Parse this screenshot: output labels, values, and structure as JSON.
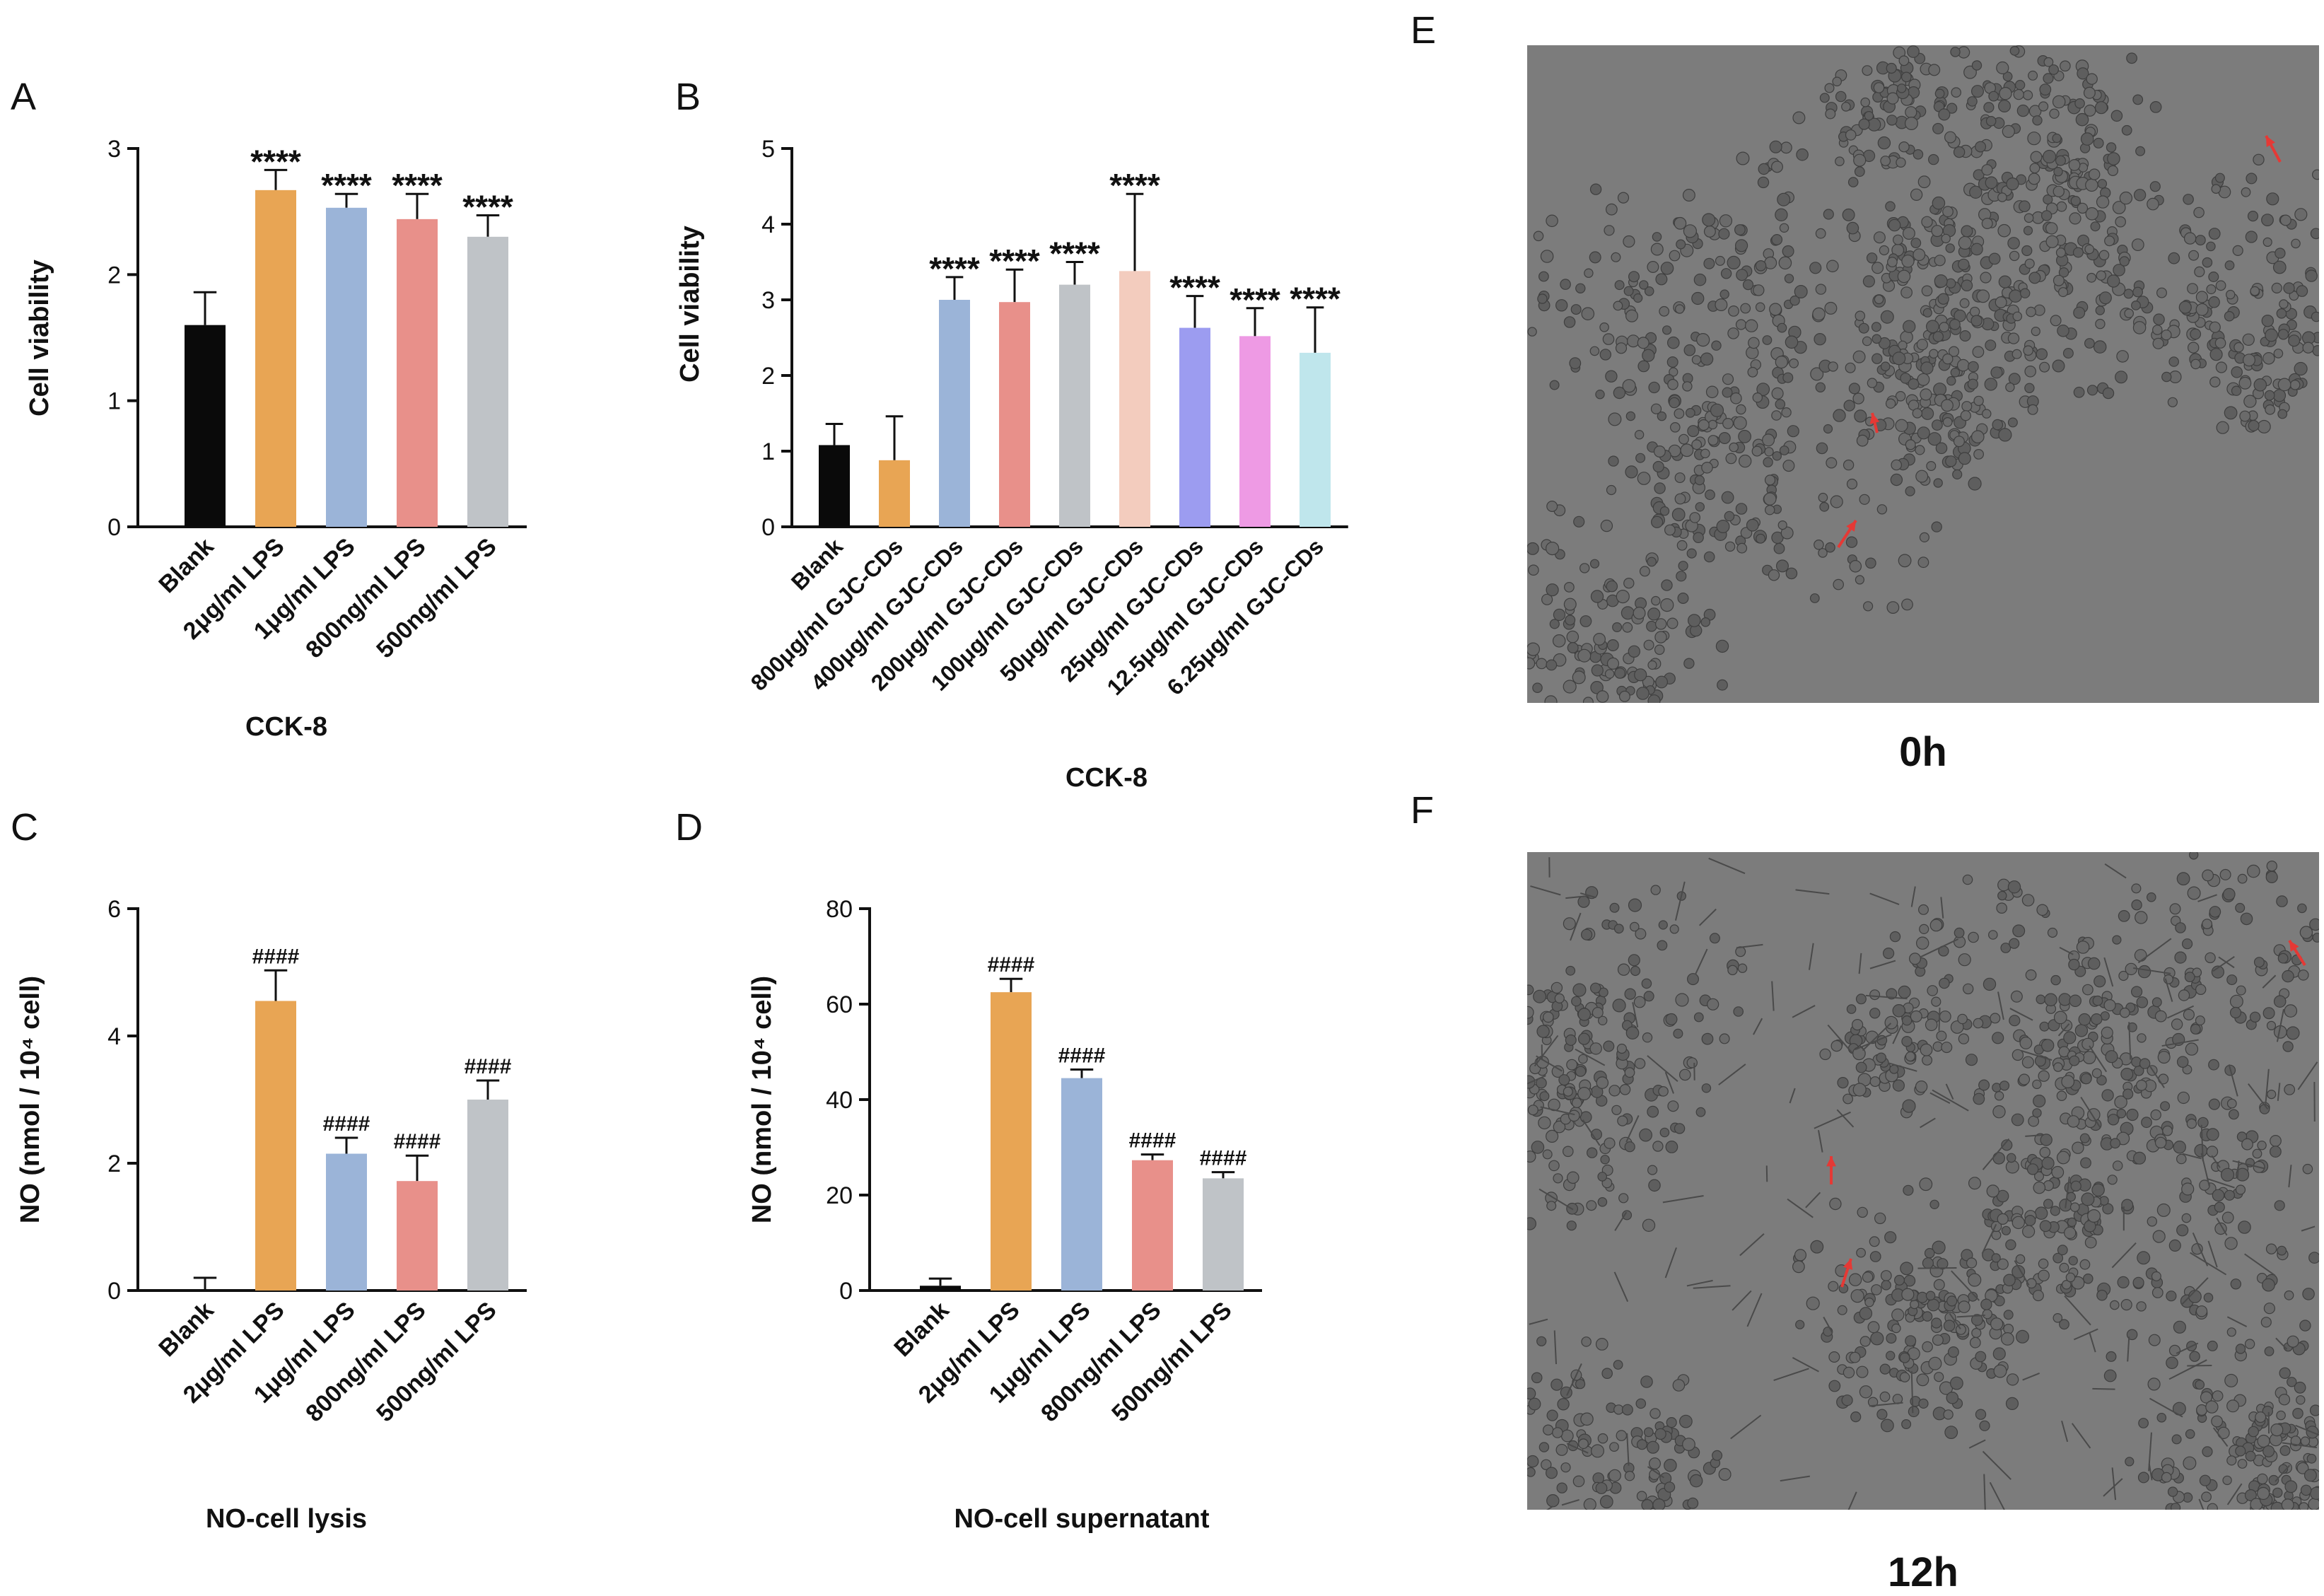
{
  "colors": {
    "black": "#0a0a0a",
    "orange": "#E8A554",
    "blue": "#9BB4D8",
    "salmon": "#E8908A",
    "gray": "#BFC3C7",
    "peach": "#F3CCBE",
    "purple": "#9C9CF0",
    "pink": "#EE9AE4",
    "cyan": "#BFE6EC",
    "arrow": "#E53935",
    "image_bg": "#7c7c7c"
  },
  "chart_data": [
    {
      "panel": "A",
      "type": "bar",
      "title": "CCK-8",
      "ylabel": "Cell viability",
      "ylim": [
        0,
        3
      ],
      "yticks": [
        "0",
        "1",
        "2",
        "3"
      ],
      "categories": [
        "Blank",
        "2μg/ml LPS",
        "1μg/ml LPS",
        "800ng/ml LPS",
        "500ng/ml LPS"
      ],
      "values": [
        1.6,
        2.67,
        2.53,
        2.44,
        2.3
      ],
      "errors": [
        0.26,
        0.16,
        0.11,
        0.2,
        0.17
      ],
      "annotations": [
        "",
        "****",
        "****",
        "****",
        "****"
      ],
      "colors": [
        "black",
        "orange",
        "blue",
        "salmon",
        "gray"
      ]
    },
    {
      "panel": "B",
      "type": "bar",
      "title": "CCK-8",
      "ylabel": "Cell viability",
      "ylim": [
        0,
        5
      ],
      "yticks": [
        "0",
        "1",
        "2",
        "3",
        "4",
        "5"
      ],
      "categories": [
        "Blank",
        "800μg/ml GJC-CDs",
        "400μg/ml GJC-CDs",
        "200μg/ml GJC-CDs",
        "100μg/ml GJC-CDs",
        "50μg/ml GJC-CDs",
        "25μg/ml GJC-CDs",
        "12.5μg/ml GJC-CDs",
        "6.25μg/ml GJC-CDs"
      ],
      "values": [
        1.08,
        0.88,
        3.0,
        2.97,
        3.2,
        3.38,
        2.63,
        2.52,
        2.3
      ],
      "errors": [
        0.28,
        0.58,
        0.3,
        0.43,
        0.3,
        1.02,
        0.42,
        0.37,
        0.6
      ],
      "annotations": [
        "",
        "",
        "****",
        "****",
        "****",
        "****",
        "****",
        "****",
        "****"
      ],
      "colors": [
        "black",
        "orange",
        "blue",
        "salmon",
        "gray",
        "peach",
        "purple",
        "pink",
        "cyan"
      ]
    },
    {
      "panel": "C",
      "type": "bar",
      "title": "NO-cell lysis",
      "ylabel": "NO (nmol / 10⁴ cell)",
      "ylim": [
        0,
        6
      ],
      "yticks": [
        "0",
        "2",
        "4",
        "6"
      ],
      "categories": [
        "Blank",
        "2μg/ml LPS",
        "1μg/ml LPS",
        "800ng/ml LPS",
        "500ng/ml LPS"
      ],
      "values": [
        0,
        4.55,
        2.15,
        1.72,
        3.0
      ],
      "errors": [
        0.2,
        0.48,
        0.25,
        0.4,
        0.3
      ],
      "annotations": [
        "",
        "####",
        "####",
        "####",
        "####"
      ],
      "colors": [
        "black",
        "orange",
        "blue",
        "salmon",
        "gray"
      ]
    },
    {
      "panel": "D",
      "type": "bar",
      "title": "NO-cell supernatant",
      "ylabel": "NO (nmol / 10⁴ cell)",
      "ylim": [
        0,
        80
      ],
      "yticks": [
        "0",
        "20",
        "40",
        "60",
        "80"
      ],
      "categories": [
        "Blank",
        "2μg/ml LPS",
        "1μg/ml LPS",
        "800ng/ml LPS",
        "500ng/ml LPS"
      ],
      "values": [
        1.0,
        62.5,
        44.5,
        27.3,
        23.5
      ],
      "errors": [
        1.5,
        2.8,
        1.8,
        1.2,
        1.3
      ],
      "annotations": [
        "",
        "####",
        "####",
        "####",
        "####"
      ],
      "colors": [
        "black",
        "orange",
        "blue",
        "salmon",
        "gray"
      ]
    }
  ],
  "images": [
    {
      "panel": "E",
      "label": "0h"
    },
    {
      "panel": "F",
      "label": "12h"
    }
  ]
}
